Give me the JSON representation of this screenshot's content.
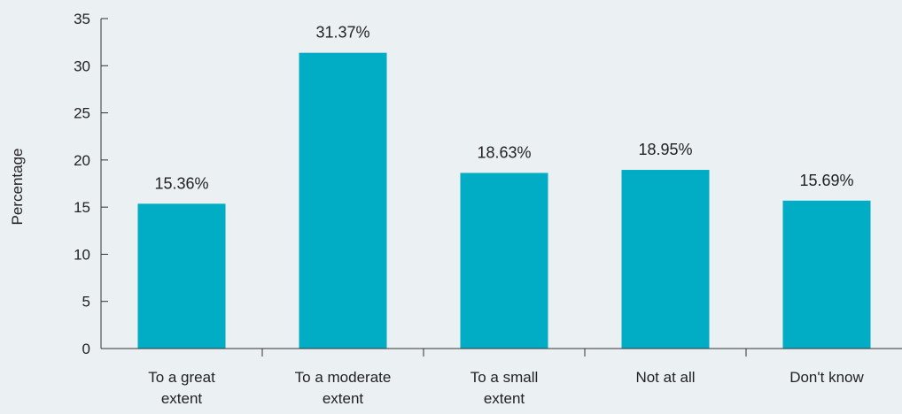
{
  "chart_data": {
    "type": "bar",
    "title": "",
    "xlabel": "",
    "ylabel": "Percentage",
    "ylim": [
      0,
      35
    ],
    "yticks": [
      "0",
      "5",
      "10",
      "15",
      "20",
      "25",
      "30",
      "35"
    ],
    "categories": [
      [
        "To a great",
        "extent"
      ],
      [
        "To a moderate",
        "extent"
      ],
      [
        "To a small",
        "extent"
      ],
      [
        "Not at all"
      ],
      [
        "Don't know"
      ]
    ],
    "values": [
      15.36,
      31.37,
      18.63,
      18.95,
      15.69
    ],
    "data_labels": [
      "15.36%",
      "31.37%",
      "18.63%",
      "18.95%",
      "15.69%"
    ],
    "grid": false,
    "legend": "none",
    "colors": {
      "background": "#ebf0f3",
      "bar": "#00adc4",
      "axis": "#333333",
      "text": "#222222"
    }
  }
}
